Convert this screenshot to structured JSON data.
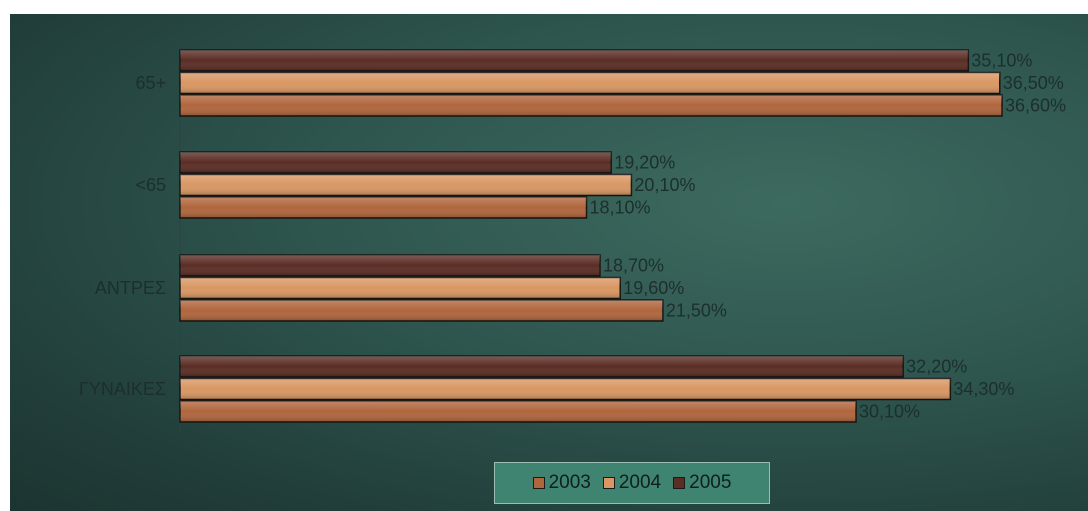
{
  "chart_data": {
    "type": "bar",
    "orientation": "horizontal",
    "categories": [
      "65+",
      "<65",
      "ΑΝΤΡΕΣ",
      "ΓΥΝΑΙΚΕΣ"
    ],
    "series": [
      {
        "name": "2005",
        "values": [
          35.1,
          19.2,
          18.7,
          32.2
        ],
        "labels": [
          "35,10%",
          "19,20%",
          "18,70%",
          "32,20%"
        ],
        "color": "#5a2d25"
      },
      {
        "name": "2004",
        "values": [
          36.5,
          20.1,
          19.6,
          34.3
        ],
        "labels": [
          "36,50%",
          "20,10%",
          "19,60%",
          "34,30%"
        ],
        "color": "#d99763"
      },
      {
        "name": "2003",
        "values": [
          36.6,
          18.1,
          21.5,
          30.1
        ],
        "labels": [
          "36,60%",
          "18,10%",
          "21,50%",
          "30,10%"
        ],
        "color": "#b0663d"
      }
    ],
    "xlim": [
      0,
      36.6
    ],
    "grid": false,
    "legend_position": "bottom",
    "legend_order": [
      "2003",
      "2004",
      "2005"
    ]
  }
}
